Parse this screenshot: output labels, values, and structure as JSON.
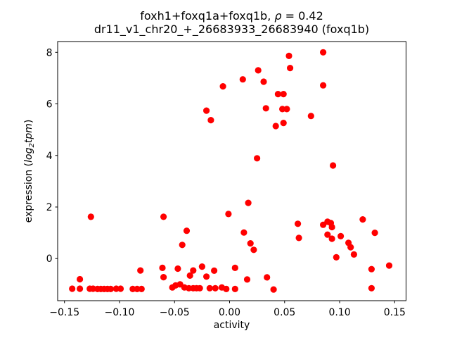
{
  "figure": {
    "background": "#ffffff"
  },
  "chart_data": {
    "type": "scatter",
    "title": "foxh1+foxq1a+foxq1b, ρ = 0.42",
    "subtitle": "dr11_v1_chr20_+_26683933_26683940 (foxq1b)",
    "title_segments": [
      {
        "text": "foxh1+foxq1a+foxq1b, ",
        "italic": false
      },
      {
        "text": "ρ",
        "italic": true
      },
      {
        "text": " = 0.42",
        "italic": false
      }
    ],
    "xlabel": "activity",
    "ylabel": "expression (log₂tpm)",
    "ylabel_segments": [
      {
        "text": "expression (",
        "italic": false
      },
      {
        "text": "log",
        "italic": true
      },
      {
        "text": "2",
        "italic": true,
        "sub": true
      },
      {
        "text": "tpm",
        "italic": true
      },
      {
        "text": ")",
        "italic": false
      }
    ],
    "legend": null,
    "grid": false,
    "marker_color": "#ff0000",
    "marker_radius_px": 4.6,
    "axis_color": "#000000",
    "xlim": [
      -0.1562,
      0.16035
    ],
    "ylim": [
      -1.633,
      8.418
    ],
    "xticks": [
      {
        "value": -0.15,
        "label": "−0.15"
      },
      {
        "value": -0.1,
        "label": "−0.10"
      },
      {
        "value": -0.05,
        "label": "−0.05"
      },
      {
        "value": 0.0,
        "label": "0.00"
      },
      {
        "value": 0.05,
        "label": "0.05"
      },
      {
        "value": 0.1,
        "label": "0.10"
      },
      {
        "value": 0.15,
        "label": "0.15"
      }
    ],
    "yticks": [
      {
        "value": 0,
        "label": "0"
      },
      {
        "value": 2,
        "label": "2"
      },
      {
        "value": 4,
        "label": "4"
      },
      {
        "value": 6,
        "label": "6"
      },
      {
        "value": 8,
        "label": "8"
      }
    ],
    "points": [
      [
        -0.006,
        6.68
      ],
      [
        -0.021,
        5.74
      ],
      [
        -0.017,
        5.37
      ],
      [
        0.085,
        8.0
      ],
      [
        0.054,
        7.86
      ],
      [
        0.055,
        7.39
      ],
      [
        0.026,
        7.3
      ],
      [
        0.012,
        6.95
      ],
      [
        0.031,
        6.86
      ],
      [
        0.085,
        6.72
      ],
      [
        0.044,
        6.38
      ],
      [
        0.049,
        6.38
      ],
      [
        0.033,
        5.83
      ],
      [
        0.048,
        5.8
      ],
      [
        0.052,
        5.8
      ],
      [
        0.074,
        5.53
      ],
      [
        0.042,
        5.14
      ],
      [
        0.049,
        5.26
      ],
      [
        0.025,
        3.89
      ],
      [
        0.094,
        3.61
      ],
      [
        0.017,
        2.16
      ],
      [
        -0.126,
        1.62
      ],
      [
        -0.06,
        1.62
      ],
      [
        -0.001,
        1.73
      ],
      [
        0.121,
        1.52
      ],
      [
        0.089,
        1.43
      ],
      [
        0.092,
        1.38
      ],
      [
        0.085,
        1.31
      ],
      [
        0.093,
        1.22
      ],
      [
        0.062,
        1.35
      ],
      [
        -0.039,
        1.08
      ],
      [
        0.132,
        1.0
      ],
      [
        0.013,
        1.01
      ],
      [
        0.089,
        0.93
      ],
      [
        0.101,
        0.87
      ],
      [
        0.063,
        0.8
      ],
      [
        0.093,
        0.77
      ],
      [
        0.108,
        0.61
      ],
      [
        0.019,
        0.59
      ],
      [
        -0.043,
        0.53
      ],
      [
        0.11,
        0.44
      ],
      [
        0.022,
        0.34
      ],
      [
        0.113,
        0.16
      ],
      [
        0.097,
        0.05
      ],
      [
        0.005,
        -0.36
      ],
      [
        -0.025,
        -0.31
      ],
      [
        -0.061,
        -0.36
      ],
      [
        -0.047,
        -0.39
      ],
      [
        -0.033,
        -0.46
      ],
      [
        -0.014,
        -0.47
      ],
      [
        -0.081,
        -0.46
      ],
      [
        -0.036,
        -0.66
      ],
      [
        -0.06,
        -0.72
      ],
      [
        -0.021,
        -0.7
      ],
      [
        0.016,
        -0.81
      ],
      [
        0.034,
        -0.73
      ],
      [
        -0.136,
        -0.8
      ],
      [
        0.145,
        -0.27
      ],
      [
        0.129,
        -0.41
      ],
      [
        -0.143,
        -1.17
      ],
      [
        -0.136,
        -1.17
      ],
      [
        -0.127,
        -1.17
      ],
      [
        -0.124,
        -1.17
      ],
      [
        -0.12,
        -1.18
      ],
      [
        -0.117,
        -1.18
      ],
      [
        -0.114,
        -1.18
      ],
      [
        -0.111,
        -1.18
      ],
      [
        -0.108,
        -1.18
      ],
      [
        -0.103,
        -1.17
      ],
      [
        -0.099,
        -1.17
      ],
      [
        -0.088,
        -1.18
      ],
      [
        -0.084,
        -1.18
      ],
      [
        -0.08,
        -1.18
      ],
      [
        -0.052,
        -1.12
      ],
      [
        -0.049,
        -1.04
      ],
      [
        -0.045,
        -1.0
      ],
      [
        -0.041,
        -1.12
      ],
      [
        -0.037,
        -1.15
      ],
      [
        -0.033,
        -1.15
      ],
      [
        -0.03,
        -1.15
      ],
      [
        -0.027,
        -1.15
      ],
      [
        -0.018,
        -1.15
      ],
      [
        -0.013,
        -1.15
      ],
      [
        -0.007,
        -1.12
      ],
      [
        -0.003,
        -1.18
      ],
      [
        0.005,
        -1.18
      ],
      [
        0.04,
        -1.2
      ],
      [
        0.129,
        -1.15
      ]
    ]
  }
}
